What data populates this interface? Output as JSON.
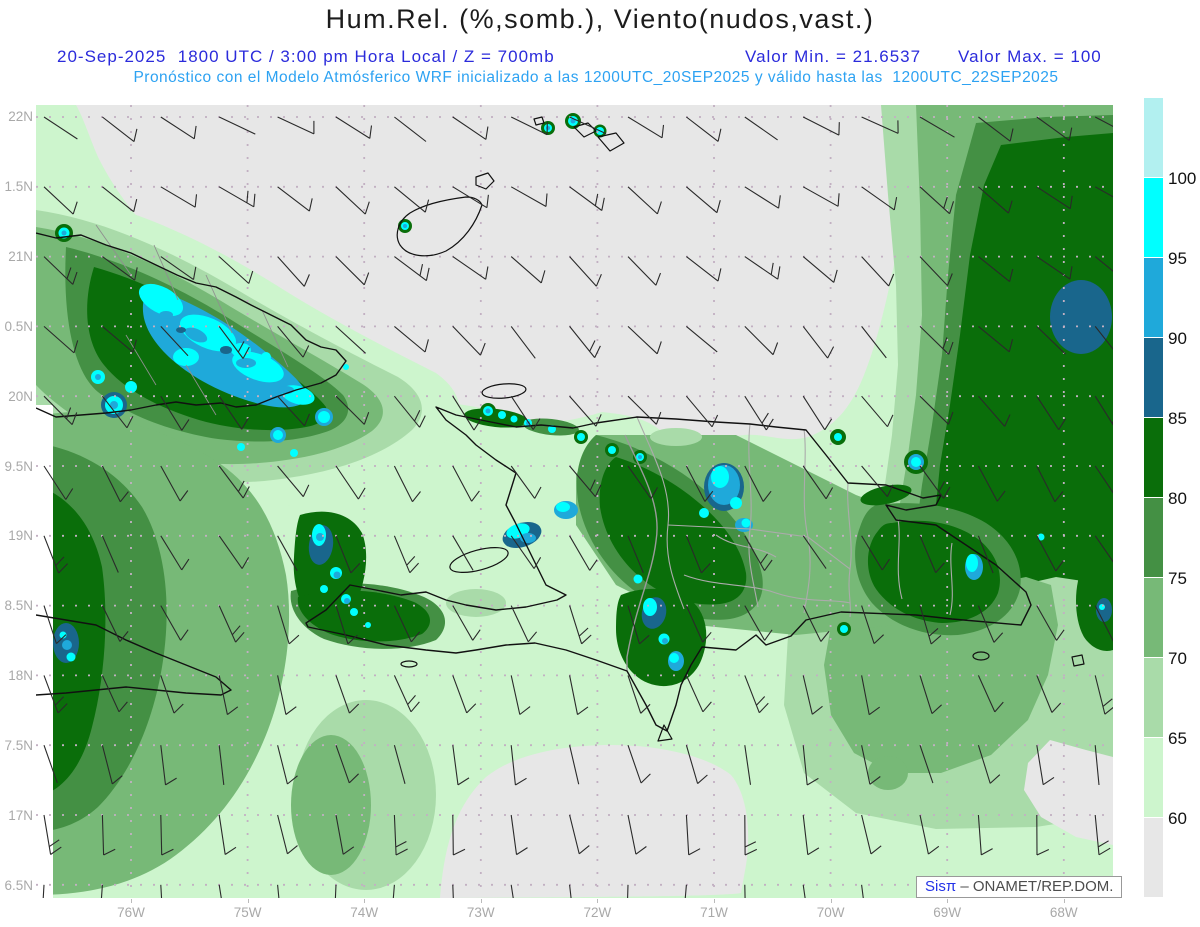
{
  "header": {
    "title": "Hum.Rel. (%,somb.), Viento(nudos,vast.)",
    "line1_datetime": "20-Sep-2025  1800 UTC / 3:00 pm Hora Local / Z = 700mb",
    "line1_min": "Valor Min. = 21.6537",
    "line1_max": "Valor Max. = 100",
    "line2": "Pronóstico con el Modelo Atmósferico WRF inicializado a las 1200UTC_20SEP2025 y válido hasta las  1200UTC_22SEP2025"
  },
  "watermark": {
    "brand": "Sisπ",
    "separator": " – ",
    "org": "ONAMET/REP.DOM."
  },
  "colors": {
    "title_text": "#1c1c1c",
    "line1_blue": "#2b2bdb",
    "line2_blue": "#2da2f2",
    "axis_label_gray": "#a9a9a9",
    "grid_dots": "#c2b0c2",
    "coastline": "#111111",
    "province_border": "#ababab",
    "below_scale_gray": "#e7e7e7"
  },
  "chart_data": {
    "type": "heatmap",
    "title": "Hum.Rel. (%,somb.), Viento(nudos,vast.)",
    "variable": "Humedad relativa (%, sombreado)",
    "wind_variable": "Viento (nudos, vastagos/barbas)",
    "level_mb": 700,
    "valid_date": "20-Sep-2025",
    "valid_utc": "1800 UTC",
    "valid_local": "3:00 pm Hora Local",
    "model": "WRF",
    "initialized": "1200UTC_20SEP2025",
    "valid_until": "1200UTC_22SEP2025",
    "valor_min": 21.6537,
    "valor_max": 100,
    "x_ticks": [
      "76W",
      "75W",
      "74W",
      "73W",
      "72W",
      "71W",
      "70W",
      "69W",
      "68W"
    ],
    "y_ticks": [
      "22N",
      "1.5N",
      "21N",
      "0.5N",
      "20N",
      "9.5N",
      "19N",
      "8.5N",
      "18N",
      "7.5N",
      "17N",
      "6.5N"
    ],
    "lon_range_approx": [
      "76.8W",
      "67.6W"
    ],
    "lat_range_approx": [
      "16.4N",
      "22.1N"
    ],
    "grid": {
      "lat_step_deg": 0.5,
      "lon_step_deg": 1,
      "style": "dotted"
    },
    "colorbar": {
      "boundary_labels": [
        "100",
        "95",
        "90",
        "85",
        "80",
        "75",
        "70",
        "65",
        "60"
      ],
      "segment_colors_top_to_bottom": [
        "#b2f0f0",
        "#00ffff",
        "#1fa9da",
        "#19668c",
        "#0a6e0a",
        "#449044",
        "#77b977",
        "#a9dba9",
        "#cdf5cd",
        "#e7e7e7"
      ],
      "segment_ranges_top_to_bottom": [
        "100",
        "95-100",
        "90-95",
        "85-90",
        "80-85",
        "75-80",
        "70-75",
        "65-70",
        "60-65",
        "<60"
      ],
      "position": "right"
    },
    "wind_barbs": {
      "symbol": "barbs",
      "units": "nudos",
      "spacing_deg": 0.5,
      "typical_speed_kt": "5-15",
      "pattern_note": "staffs slant toward SE over the north of the domain, near-vertical over the south"
    },
    "regions_read_from_map": [
      {
        "area": "Atlántico al norte de Cuba y de la Hispaniola",
        "humidity_pct": "<60"
      },
      {
        "area": "Este de Cuba (Sierra Maestra)",
        "humidity_pct": "90-100"
      },
      {
        "area": "Cordillera Central de la Hispaniola",
        "humidity_pct": "80-100"
      },
      {
        "area": "Península de Tiburón (suroeste de Haití)",
        "humidity_pct": "85-100"
      },
      {
        "area": "Atlántico en el borde este (~68W, 20.5N)",
        "humidity_pct": "85-90"
      },
      {
        "area": "Caribe al sur de la Hispaniola",
        "humidity_pct": "60-75"
      },
      {
        "area": "Sur de Jamaica / borde oeste",
        "humidity_pct": "70-85"
      },
      {
        "area": "Franja sur central del dominio",
        "humidity_pct": "<60"
      }
    ]
  }
}
